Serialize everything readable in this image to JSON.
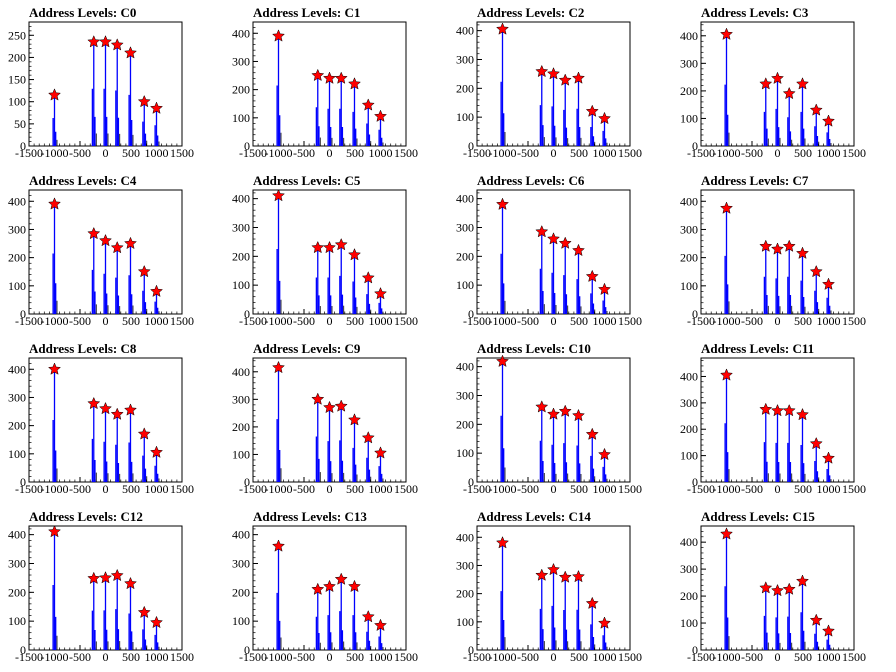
{
  "chart_data": {
    "type": "histogram-grid",
    "rows": 4,
    "cols": 4,
    "xlim": [
      -1500,
      1500
    ],
    "xticks": [
      -1500,
      -1000,
      -500,
      0,
      500,
      1000,
      1500
    ],
    "x_positions": [
      -1000,
      -230,
      0,
      230,
      490,
      760,
      1000
    ],
    "colors": {
      "histogram": "#0000ff",
      "marker": "#ff0000",
      "axis": "#000000"
    },
    "panels": [
      {
        "title": "Address Levels: C0",
        "ylim": [
          0,
          280
        ],
        "yticks": [
          0,
          50,
          100,
          150,
          200,
          250
        ],
        "peaks": [
          115,
          235,
          235,
          228,
          210,
          100,
          85
        ]
      },
      {
        "title": "Address Levels: C1",
        "ylim": [
          0,
          440
        ],
        "yticks": [
          0,
          100,
          200,
          300,
          400
        ],
        "peaks": [
          390,
          250,
          240,
          240,
          220,
          145,
          105
        ]
      },
      {
        "title": "Address Levels: C2",
        "ylim": [
          0,
          430
        ],
        "yticks": [
          0,
          100,
          200,
          300,
          400
        ],
        "peaks": [
          405,
          258,
          250,
          228,
          235,
          120,
          95
        ]
      },
      {
        "title": "Address Levels: C3",
        "ylim": [
          0,
          450
        ],
        "yticks": [
          0,
          100,
          200,
          300,
          400
        ],
        "peaks": [
          405,
          225,
          245,
          190,
          225,
          130,
          90
        ]
      },
      {
        "title": "Address Levels: C4",
        "ylim": [
          0,
          440
        ],
        "yticks": [
          0,
          100,
          200,
          300,
          400
        ],
        "peaks": [
          390,
          285,
          260,
          235,
          250,
          150,
          80
        ]
      },
      {
        "title": "Address Levels: C5",
        "ylim": [
          0,
          430
        ],
        "yticks": [
          0,
          100,
          200,
          300,
          400
        ],
        "peaks": [
          410,
          230,
          230,
          240,
          205,
          125,
          70
        ]
      },
      {
        "title": "Address Levels: C6",
        "ylim": [
          0,
          430
        ],
        "yticks": [
          0,
          100,
          200,
          300,
          400
        ],
        "peaks": [
          380,
          285,
          260,
          245,
          220,
          130,
          85
        ]
      },
      {
        "title": "Address Levels: C7",
        "ylim": [
          0,
          440
        ],
        "yticks": [
          0,
          100,
          200,
          300,
          400
        ],
        "peaks": [
          375,
          240,
          230,
          240,
          215,
          150,
          105
        ]
      },
      {
        "title": "Address Levels: C8",
        "ylim": [
          0,
          440
        ],
        "yticks": [
          0,
          100,
          200,
          300,
          400
        ],
        "peaks": [
          400,
          278,
          260,
          240,
          255,
          170,
          105
        ]
      },
      {
        "title": "Address Levels: C9",
        "ylim": [
          0,
          450
        ],
        "yticks": [
          0,
          100,
          200,
          300,
          400
        ],
        "peaks": [
          415,
          300,
          270,
          275,
          225,
          160,
          105
        ]
      },
      {
        "title": "Address Levels: C10",
        "ylim": [
          0,
          430
        ],
        "yticks": [
          0,
          100,
          200,
          300,
          400
        ],
        "peaks": [
          418,
          260,
          235,
          245,
          230,
          165,
          95
        ]
      },
      {
        "title": "Address Levels: C11",
        "ylim": [
          0,
          470
        ],
        "yticks": [
          0,
          100,
          200,
          300,
          400
        ],
        "peaks": [
          405,
          275,
          270,
          270,
          255,
          145,
          90
        ]
      },
      {
        "title": "Address Levels: C12",
        "ylim": [
          0,
          430
        ],
        "yticks": [
          0,
          100,
          200,
          300,
          400
        ],
        "peaks": [
          410,
          248,
          250,
          258,
          230,
          130,
          95
        ]
      },
      {
        "title": "Address Levels: C13",
        "ylim": [
          0,
          430
        ],
        "yticks": [
          0,
          100,
          200,
          300,
          400
        ],
        "peaks": [
          360,
          210,
          220,
          245,
          220,
          115,
          85
        ]
      },
      {
        "title": "Address Levels: C14",
        "ylim": [
          0,
          440
        ],
        "yticks": [
          0,
          100,
          200,
          300,
          400
        ],
        "peaks": [
          380,
          265,
          285,
          258,
          260,
          165,
          95
        ]
      },
      {
        "title": "Address Levels: C15",
        "ylim": [
          0,
          460
        ],
        "yticks": [
          0,
          100,
          200,
          300,
          400
        ],
        "peaks": [
          430,
          230,
          220,
          225,
          255,
          110,
          70
        ]
      }
    ]
  }
}
